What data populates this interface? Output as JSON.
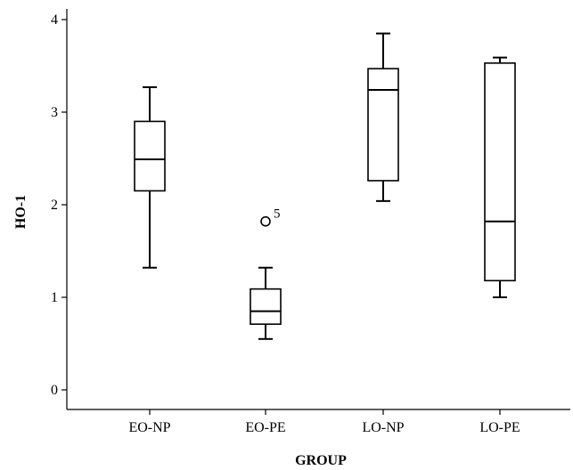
{
  "chart_data": {
    "type": "boxplot",
    "xlabel": "GROUP",
    "ylabel": "HO-1",
    "ylim": [
      -0.2,
      4.2
    ],
    "yticks": [
      0,
      1,
      2,
      3,
      4
    ],
    "categories": [
      "EO-NP",
      "EO-PE",
      "LO-NP",
      "LO-PE"
    ],
    "boxes": [
      {
        "category": "EO-NP",
        "min": 1.32,
        "q1": 2.15,
        "median": 2.49,
        "q3": 2.9,
        "max": 3.27,
        "outliers": []
      },
      {
        "category": "EO-PE",
        "min": 0.55,
        "q1": 0.71,
        "median": 0.85,
        "q3": 1.09,
        "max": 1.32,
        "outliers": [
          {
            "value": 1.82,
            "label": "5"
          }
        ]
      },
      {
        "category": "LO-NP",
        "min": 2.04,
        "q1": 2.26,
        "median": 3.24,
        "q3": 3.47,
        "max": 3.85,
        "outliers": []
      },
      {
        "category": "LO-PE",
        "min": 1.0,
        "q1": 1.18,
        "median": 1.82,
        "q3": 3.53,
        "max": 3.59,
        "outliers": []
      }
    ],
    "grid": false
  }
}
